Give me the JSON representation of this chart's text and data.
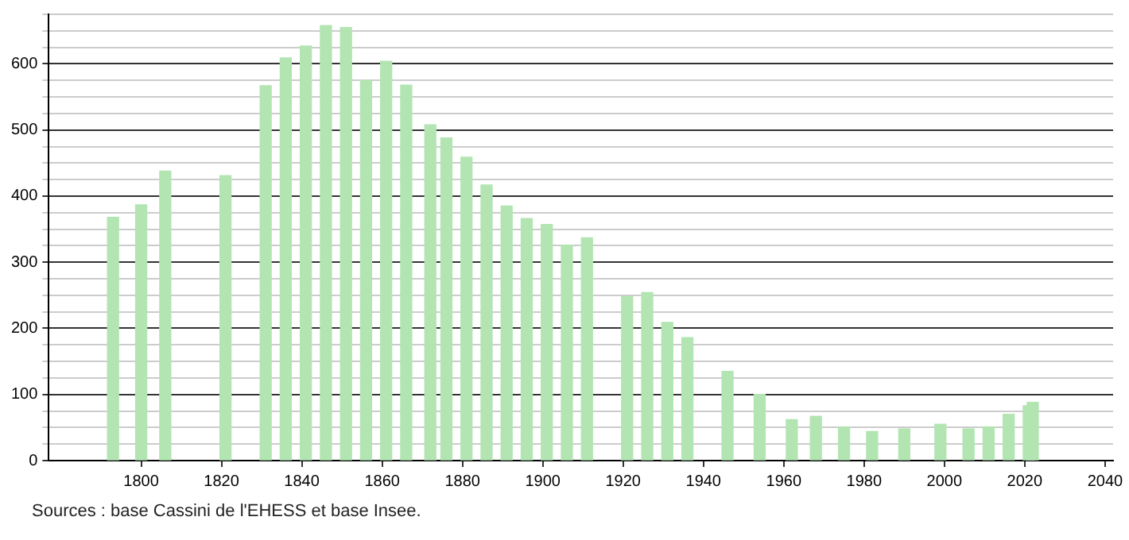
{
  "chart_data": {
    "type": "bar",
    "x": [
      1793,
      1800,
      1806,
      1821,
      1831,
      1836,
      1841,
      1846,
      1851,
      1856,
      1861,
      1866,
      1872,
      1876,
      1881,
      1886,
      1891,
      1896,
      1901,
      1906,
      1911,
      1921,
      1926,
      1931,
      1936,
      1946,
      1954,
      1962,
      1968,
      1975,
      1982,
      1990,
      1999,
      2006,
      2011,
      2016,
      2021,
      2022
    ],
    "values": [
      368,
      387,
      438,
      431,
      567,
      609,
      627,
      658,
      655,
      575,
      604,
      568,
      508,
      488,
      459,
      417,
      385,
      366,
      357,
      326,
      337,
      248,
      254,
      209,
      186,
      135,
      100,
      62,
      67,
      51,
      44,
      48,
      55,
      48,
      51,
      70,
      83,
      88
    ],
    "color": "#b3e5b3",
    "xlim": [
      1777,
      2042
    ],
    "xticks": [
      1800,
      1820,
      1840,
      1860,
      1880,
      1900,
      1920,
      1940,
      1960,
      1980,
      2000,
      2020,
      2040
    ],
    "ylim": [
      0,
      675
    ],
    "yticks": [
      0,
      {
        "value": 25,
        "label": null
      },
      {
        "value": 50,
        "label": null
      },
      {
        "value": 75,
        "label": null
      },
      100,
      {
        "value": 125,
        "label": null
      },
      {
        "value": 150,
        "label": null
      },
      {
        "value": 175,
        "label": null
      },
      200,
      {
        "value": 225,
        "label": null
      },
      {
        "value": 250,
        "label": null
      },
      {
        "value": 275,
        "label": null
      },
      300,
      {
        "value": 325,
        "label": null
      },
      {
        "value": 350,
        "label": null
      },
      {
        "value": 375,
        "label": null
      },
      400,
      {
        "value": 425,
        "label": null
      },
      {
        "value": 450,
        "label": null
      },
      {
        "value": 475,
        "label": null
      },
      500,
      {
        "value": 525,
        "label": null
      },
      {
        "value": 550,
        "label": null
      },
      {
        "value": 575,
        "label": null
      },
      600,
      {
        "value": 625,
        "label": null
      },
      {
        "value": 650,
        "label": null
      },
      {
        "value": 675,
        "label": null
      }
    ],
    "grid": "y",
    "annotations": [
      "Sources : base Cassini de l'EHESS et base Insee."
    ]
  }
}
